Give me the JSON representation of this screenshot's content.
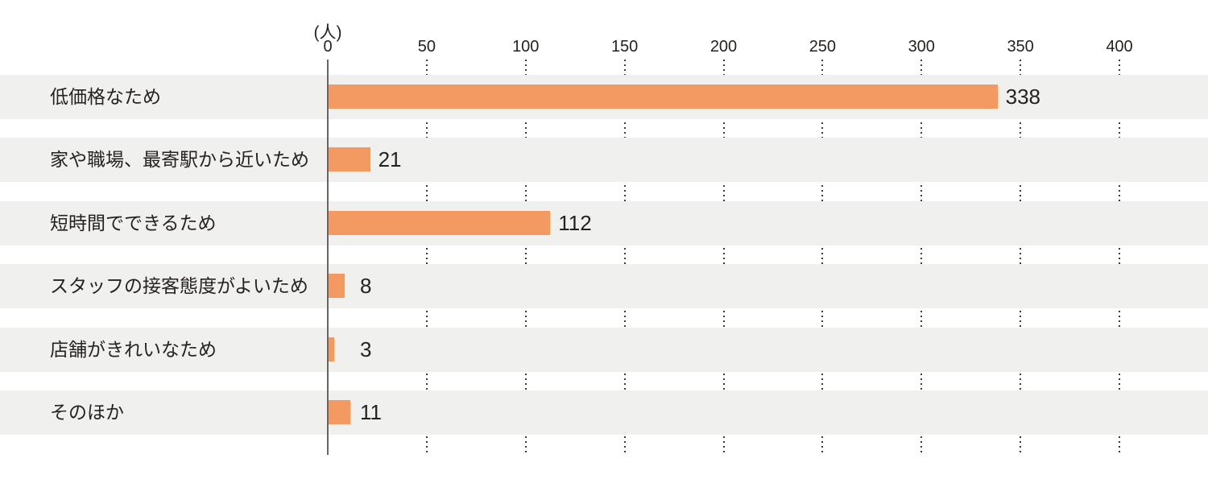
{
  "chart_data": {
    "type": "bar",
    "orientation": "horizontal",
    "title": "",
    "unit_label": "(人)",
    "categories": [
      "低価格なため",
      "家や職場、最寄駅から近いため",
      "短時間でできるため",
      "スタッフの接客態度がよいため",
      "店舗がきれいなため",
      "そのほか"
    ],
    "values": [
      338,
      21,
      112,
      8,
      3,
      11
    ],
    "x_ticks": [
      0,
      50,
      100,
      150,
      200,
      250,
      300,
      350,
      400
    ],
    "xlim": [
      0,
      400
    ],
    "grid": "vertical-dotted-between-rows",
    "legend": "none",
    "colors": {
      "bar": "#f29a62",
      "row_band": "#f0f0ef",
      "text": "#262220",
      "axis_line": "#6a6562",
      "gridline": "#3f3b39",
      "background": "#ffffff"
    }
  }
}
